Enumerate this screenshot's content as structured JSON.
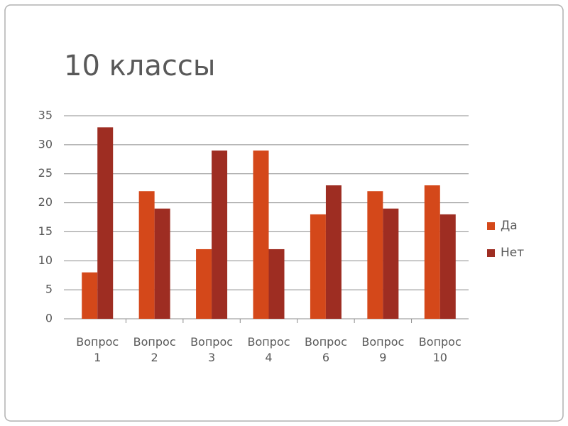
{
  "chart_data": {
    "type": "bar",
    "title": "10 классы",
    "categories": [
      "Вопрос 1",
      "Вопрос 2",
      "Вопрос 3",
      "Вопрос 4",
      "Вопрос 6",
      "Вопрос 9",
      "Вопрос 10"
    ],
    "series": [
      {
        "name": "Да",
        "color": "#d4481a",
        "values": [
          8,
          22,
          12,
          29,
          18,
          22,
          23
        ]
      },
      {
        "name": "Нет",
        "color": "#9e2d22",
        "values": [
          33,
          19,
          29,
          12,
          23,
          19,
          18
        ]
      }
    ],
    "ylim": [
      0,
      35
    ],
    "yticks": [
      0,
      5,
      10,
      15,
      20,
      25,
      30,
      35
    ],
    "grid": true,
    "legend": "right"
  }
}
